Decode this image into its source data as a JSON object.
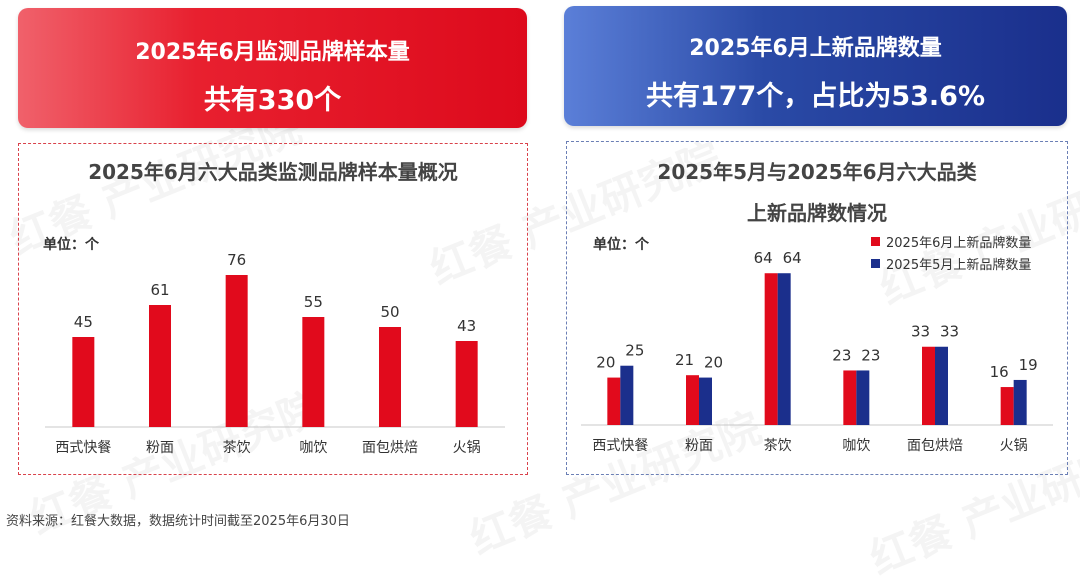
{
  "banners": {
    "left": {
      "line1": "2025年6月监测品牌样本量",
      "line2": "共有330个"
    },
    "right": {
      "line1": "2025年6月上新品牌数量",
      "line2": "共有177个，占比为53.6%"
    }
  },
  "colors": {
    "red": "#e10a1c",
    "blue": "#1b2f8c",
    "grid_axis": "#c8c8c8"
  },
  "watermark": "红餐 产业研究院",
  "source": "资料来源：红餐大数据，数据统计时间截至2025年6月30日",
  "chart_data": [
    {
      "type": "bar",
      "title": "2025年6月六大品类监测品牌样本量概况",
      "unit": "单位：个",
      "categories": [
        "西式快餐",
        "粉面",
        "茶饮",
        "咖饮",
        "面包烘焙",
        "火锅"
      ],
      "values": [
        45,
        61,
        76,
        55,
        50,
        43
      ],
      "ylim": [
        0,
        80
      ],
      "grid": false,
      "legend": "none"
    },
    {
      "type": "bar",
      "title_line1": "2025年5月与2025年6月六大品类",
      "title_line2": "上新品牌数情况",
      "unit": "单位：个",
      "categories": [
        "西式快餐",
        "粉面",
        "茶饮",
        "咖饮",
        "面包烘焙",
        "火锅"
      ],
      "series": [
        {
          "name": "2025年6月上新品牌数量",
          "color": "#e10a1c",
          "values": [
            20,
            21,
            64,
            23,
            33,
            16
          ]
        },
        {
          "name": "2025年5月上新品牌数量",
          "color": "#1b2f8c",
          "values": [
            25,
            20,
            64,
            23,
            33,
            19
          ]
        }
      ],
      "ylim": [
        0,
        70
      ],
      "grid": false,
      "legend": "top-right"
    }
  ]
}
